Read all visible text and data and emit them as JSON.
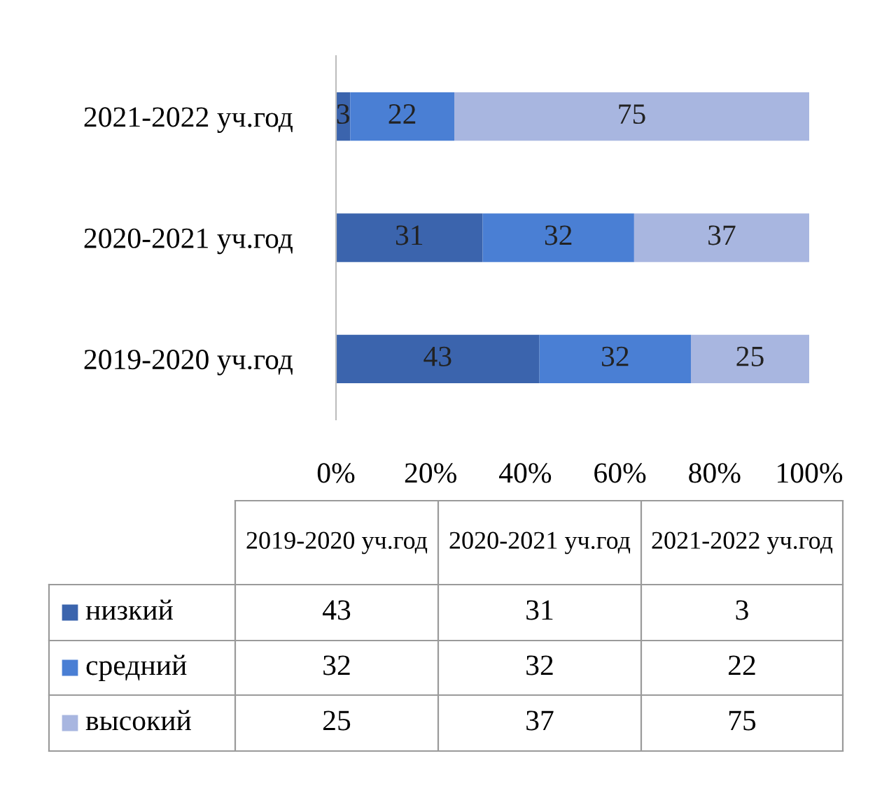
{
  "chart_data": {
    "type": "bar",
    "orientation": "horizontal",
    "stacked": true,
    "categories": [
      "2021-2022 уч.год",
      "2020-2021 уч.год",
      "2019-2020 уч.год"
    ],
    "series": [
      {
        "name": "низкий",
        "color": "#3b64ad",
        "values": [
          3,
          31,
          43
        ]
      },
      {
        "name": "средний",
        "color": "#4a7fd4",
        "values": [
          22,
          32,
          32
        ]
      },
      {
        "name": "высокий",
        "color": "#a8b6e0",
        "values": [
          75,
          37,
          25
        ]
      }
    ],
    "xlim": [
      0,
      100
    ],
    "xticks": [
      {
        "value": 0,
        "label": "0%"
      },
      {
        "value": 20,
        "label": "20%"
      },
      {
        "value": 40,
        "label": "40%"
      },
      {
        "value": 60,
        "label": "60%"
      },
      {
        "value": 80,
        "label": "80%"
      },
      {
        "value": 100,
        "label": "100%"
      }
    ],
    "annotations": [
      "43",
      "31",
      "3",
      "32",
      "32",
      "22",
      "25",
      "37",
      "75"
    ],
    "data_labels": true,
    "grid": false,
    "legend": "bottom"
  }
}
